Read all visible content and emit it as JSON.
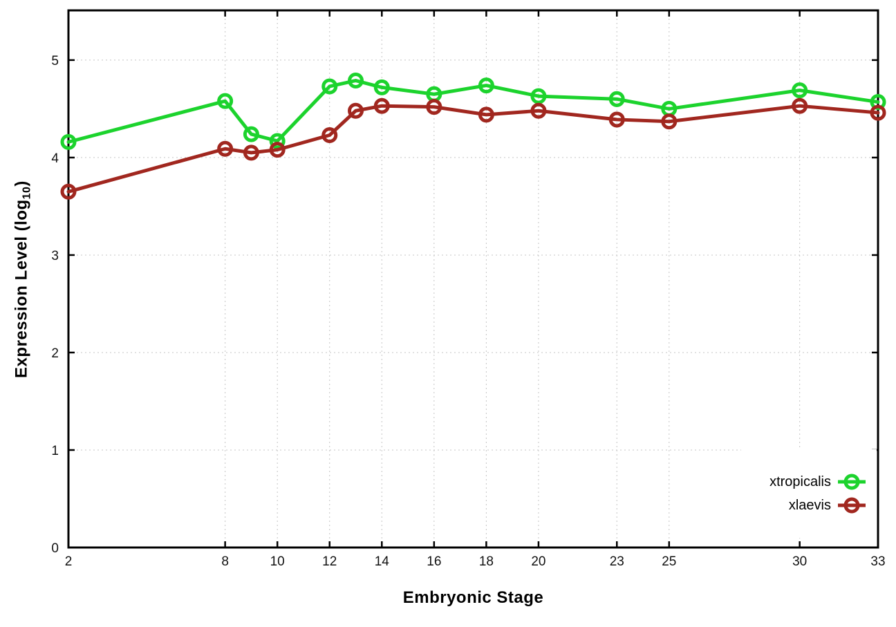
{
  "figure": {
    "background": "#ffffff",
    "xlabel": "Embryonic Stage",
    "ylabel_parts": {
      "pre": "Expression Level (log",
      "sub": "10",
      "post": ")"
    }
  },
  "chart_data": {
    "type": "line",
    "title": "",
    "xlabel": "Embryonic Stage",
    "ylabel": "Expression Level (log10)",
    "x": [
      2,
      8,
      9,
      10,
      12,
      13,
      14,
      16,
      18,
      20,
      23,
      25,
      30,
      33
    ],
    "series": [
      {
        "name": "xtropicalis",
        "color": "#1cd32d",
        "marker": "open-circle",
        "values": [
          4.16,
          4.58,
          4.24,
          4.17,
          4.73,
          4.79,
          4.72,
          4.65,
          4.74,
          4.63,
          4.6,
          4.5,
          4.69,
          4.57
        ]
      },
      {
        "name": "xlaevis",
        "color": "#a1271f",
        "marker": "open-circle",
        "values": [
          3.65,
          4.09,
          4.05,
          4.08,
          4.23,
          4.48,
          4.53,
          4.52,
          4.44,
          4.48,
          4.39,
          4.37,
          4.53,
          4.46
        ]
      }
    ],
    "xticks": [
      2,
      8,
      10,
      12,
      14,
      16,
      18,
      20,
      23,
      25,
      30,
      33
    ],
    "yticks": [
      0,
      1,
      2,
      3,
      4,
      5
    ],
    "xlim": [
      2,
      33
    ],
    "ylim": [
      0,
      5.51
    ],
    "grid": true,
    "grid_style": "dotted",
    "legend_position": "bottom-right",
    "axis_color": "#000000",
    "gridline_color": "#c4c4c4"
  }
}
